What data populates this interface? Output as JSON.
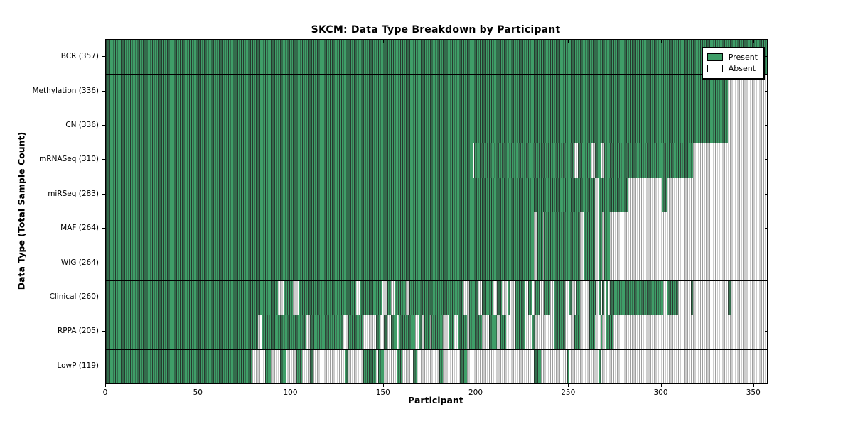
{
  "title": "SKCM: Data Type Breakdown by Participant",
  "x_axis_title": "Participant",
  "y_axis_title": "Data Type (Total Sample Count)",
  "legend": {
    "present_label": "Present",
    "absent_label": "Absent"
  },
  "colors": {
    "present_fill": "#3f9e68",
    "present_edge": "#0a2415",
    "absent_fill": "#ffffff",
    "absent_edge": "#999999",
    "frame": "#000000"
  },
  "chart_data": {
    "type": "heatmap",
    "title": "SKCM: Data Type Breakdown by Participant",
    "xlabel": "Participant",
    "ylabel": "Data Type (Total Sample Count)",
    "legend_entries": [
      "Present",
      "Absent"
    ],
    "legend_position": "upper right",
    "grid": false,
    "xlim": [
      0,
      357
    ],
    "x_ticks": [
      0,
      50,
      100,
      150,
      200,
      250,
      300,
      350
    ],
    "note": "Each row is one data type; each of 357 participant columns is Present (green) or Absent (white). present_segments are [start,end) participant index ranges.",
    "rows": [
      {
        "name": "BCR",
        "label": "BCR (357)",
        "total": 357,
        "present_segments": [
          [
            0,
            357
          ]
        ]
      },
      {
        "name": "Methylation",
        "label": "Methylation (336)",
        "total": 336,
        "present_segments": [
          [
            0,
            336
          ]
        ]
      },
      {
        "name": "CN",
        "label": "CN (336)",
        "total": 336,
        "present_segments": [
          [
            0,
            336
          ]
        ]
      },
      {
        "name": "mRNASeq",
        "label": "mRNASeq (310)",
        "total": 310,
        "present_segments": [
          [
            0,
            198
          ],
          [
            199,
            253
          ],
          [
            255,
            262
          ],
          [
            264,
            267
          ],
          [
            269,
            317
          ]
        ]
      },
      {
        "name": "miRSeq",
        "label": "miRSeq (283)",
        "total": 283,
        "present_segments": [
          [
            0,
            264
          ],
          [
            266,
            282
          ],
          [
            300,
            303
          ]
        ]
      },
      {
        "name": "MAF",
        "label": "MAF (264)",
        "total": 264,
        "present_segments": [
          [
            0,
            231
          ],
          [
            233,
            236
          ],
          [
            237,
            256
          ],
          [
            258,
            264
          ],
          [
            266,
            268
          ],
          [
            269,
            272
          ]
        ]
      },
      {
        "name": "WIG",
        "label": "WIG (264)",
        "total": 264,
        "present_segments": [
          [
            0,
            231
          ],
          [
            233,
            236
          ],
          [
            237,
            256
          ],
          [
            258,
            264
          ],
          [
            266,
            268
          ],
          [
            269,
            272
          ]
        ]
      },
      {
        "name": "Clinical",
        "label": "Clinical (260)",
        "total": 260,
        "present_segments": [
          [
            0,
            93
          ],
          [
            96,
            101
          ],
          [
            104,
            135
          ],
          [
            137,
            149
          ],
          [
            152,
            154
          ],
          [
            156,
            162
          ],
          [
            164,
            193
          ],
          [
            196,
            201
          ],
          [
            203,
            209
          ],
          [
            211,
            214
          ],
          [
            217,
            218
          ],
          [
            221,
            226
          ],
          [
            228,
            230
          ],
          [
            232,
            234
          ],
          [
            237,
            240
          ],
          [
            242,
            248
          ],
          [
            250,
            252
          ],
          [
            254,
            256
          ],
          [
            261,
            265
          ],
          [
            266,
            267
          ],
          [
            268,
            269
          ],
          [
            270,
            271
          ],
          [
            272,
            301
          ],
          [
            303,
            309
          ],
          [
            316,
            317
          ],
          [
            336,
            338
          ]
        ]
      },
      {
        "name": "RPPA",
        "label": "RPPA (205)",
        "total": 205,
        "present_segments": [
          [
            0,
            82
          ],
          [
            84,
            108
          ],
          [
            110,
            128
          ],
          [
            131,
            139
          ],
          [
            146,
            148
          ],
          [
            150,
            152
          ],
          [
            154,
            157
          ],
          [
            158,
            167
          ],
          [
            169,
            171
          ],
          [
            172,
            175
          ],
          [
            176,
            182
          ],
          [
            185,
            188
          ],
          [
            190,
            195
          ],
          [
            196,
            203
          ],
          [
            207,
            211
          ],
          [
            213,
            216
          ],
          [
            221,
            226
          ],
          [
            230,
            232
          ],
          [
            242,
            248
          ],
          [
            253,
            256
          ],
          [
            261,
            264
          ],
          [
            267,
            268
          ],
          [
            270,
            274
          ]
        ]
      },
      {
        "name": "LowP",
        "label": "LowP (119)",
        "total": 119,
        "present_segments": [
          [
            0,
            79
          ],
          [
            86,
            89
          ],
          [
            94,
            97
          ],
          [
            103,
            106
          ],
          [
            110,
            112
          ],
          [
            129,
            131
          ],
          [
            139,
            146
          ],
          [
            147,
            150
          ],
          [
            157,
            160
          ],
          [
            166,
            168
          ],
          [
            180,
            182
          ],
          [
            191,
            195
          ],
          [
            231,
            235
          ],
          [
            249,
            250
          ],
          [
            266,
            267
          ]
        ]
      }
    ]
  }
}
